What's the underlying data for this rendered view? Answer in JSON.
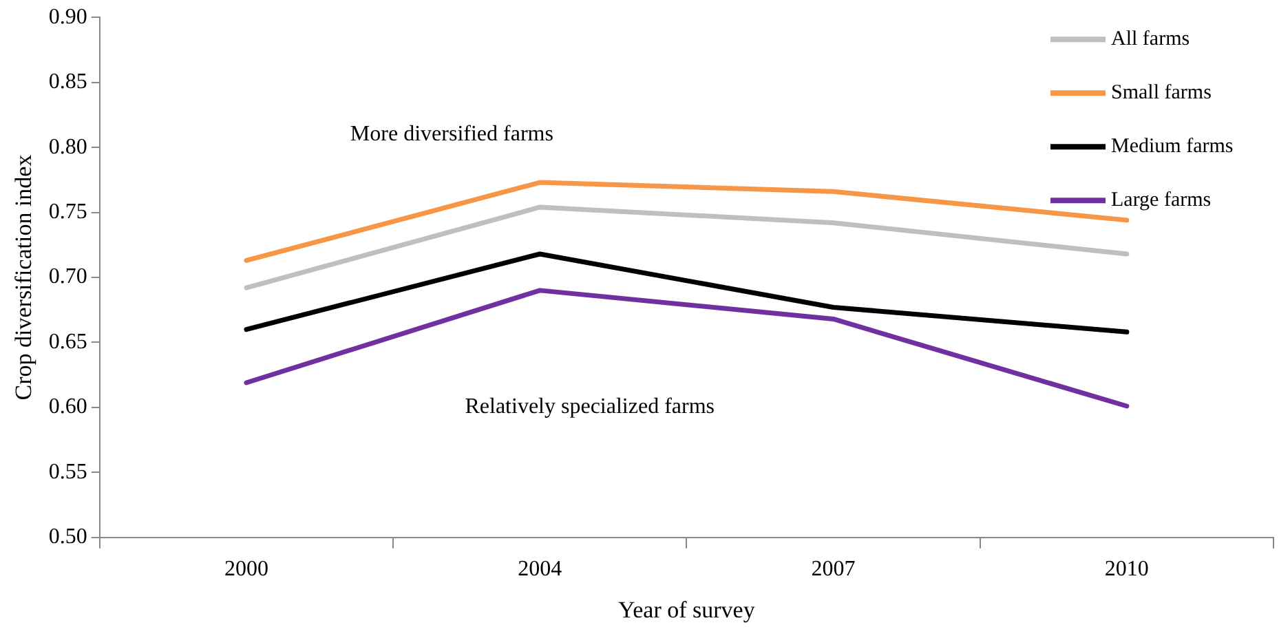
{
  "chart_data": {
    "type": "line",
    "xlabel": "Year of survey",
    "ylabel": "Crop diversification index",
    "categories": [
      "2000",
      "2004",
      "2007",
      "2010"
    ],
    "series": [
      {
        "name": "All farms",
        "color": "#bfbfbf",
        "values": [
          0.692,
          0.754,
          0.742,
          0.718
        ]
      },
      {
        "name": "Small farms",
        "color": "#f79646",
        "values": [
          0.713,
          0.773,
          0.766,
          0.744
        ]
      },
      {
        "name": "Medium farms",
        "color": "#000000",
        "values": [
          0.66,
          0.718,
          0.677,
          0.658
        ]
      },
      {
        "name": "Large farms",
        "color": "#7030a0",
        "values": [
          0.619,
          0.69,
          0.668,
          0.601
        ]
      }
    ],
    "ylim": [
      0.5,
      0.9
    ],
    "yticks": [
      {
        "value": 0.5,
        "label": "0.50"
      },
      {
        "value": 0.55,
        "label": "0.55"
      },
      {
        "value": 0.6,
        "label": "0.60"
      },
      {
        "value": 0.65,
        "label": "0.65"
      },
      {
        "value": 0.7,
        "label": "0.70"
      },
      {
        "value": 0.75,
        "label": "0.75"
      },
      {
        "value": 0.8,
        "label": "0.80"
      },
      {
        "value": 0.85,
        "label": "0.85"
      },
      {
        "value": 0.9,
        "label": "0.90"
      }
    ],
    "annotations": [
      "More diversified farms",
      "Relatively specialized farms"
    ],
    "legend": "top right",
    "grid": false,
    "marker": "none",
    "line_style": "solid"
  }
}
